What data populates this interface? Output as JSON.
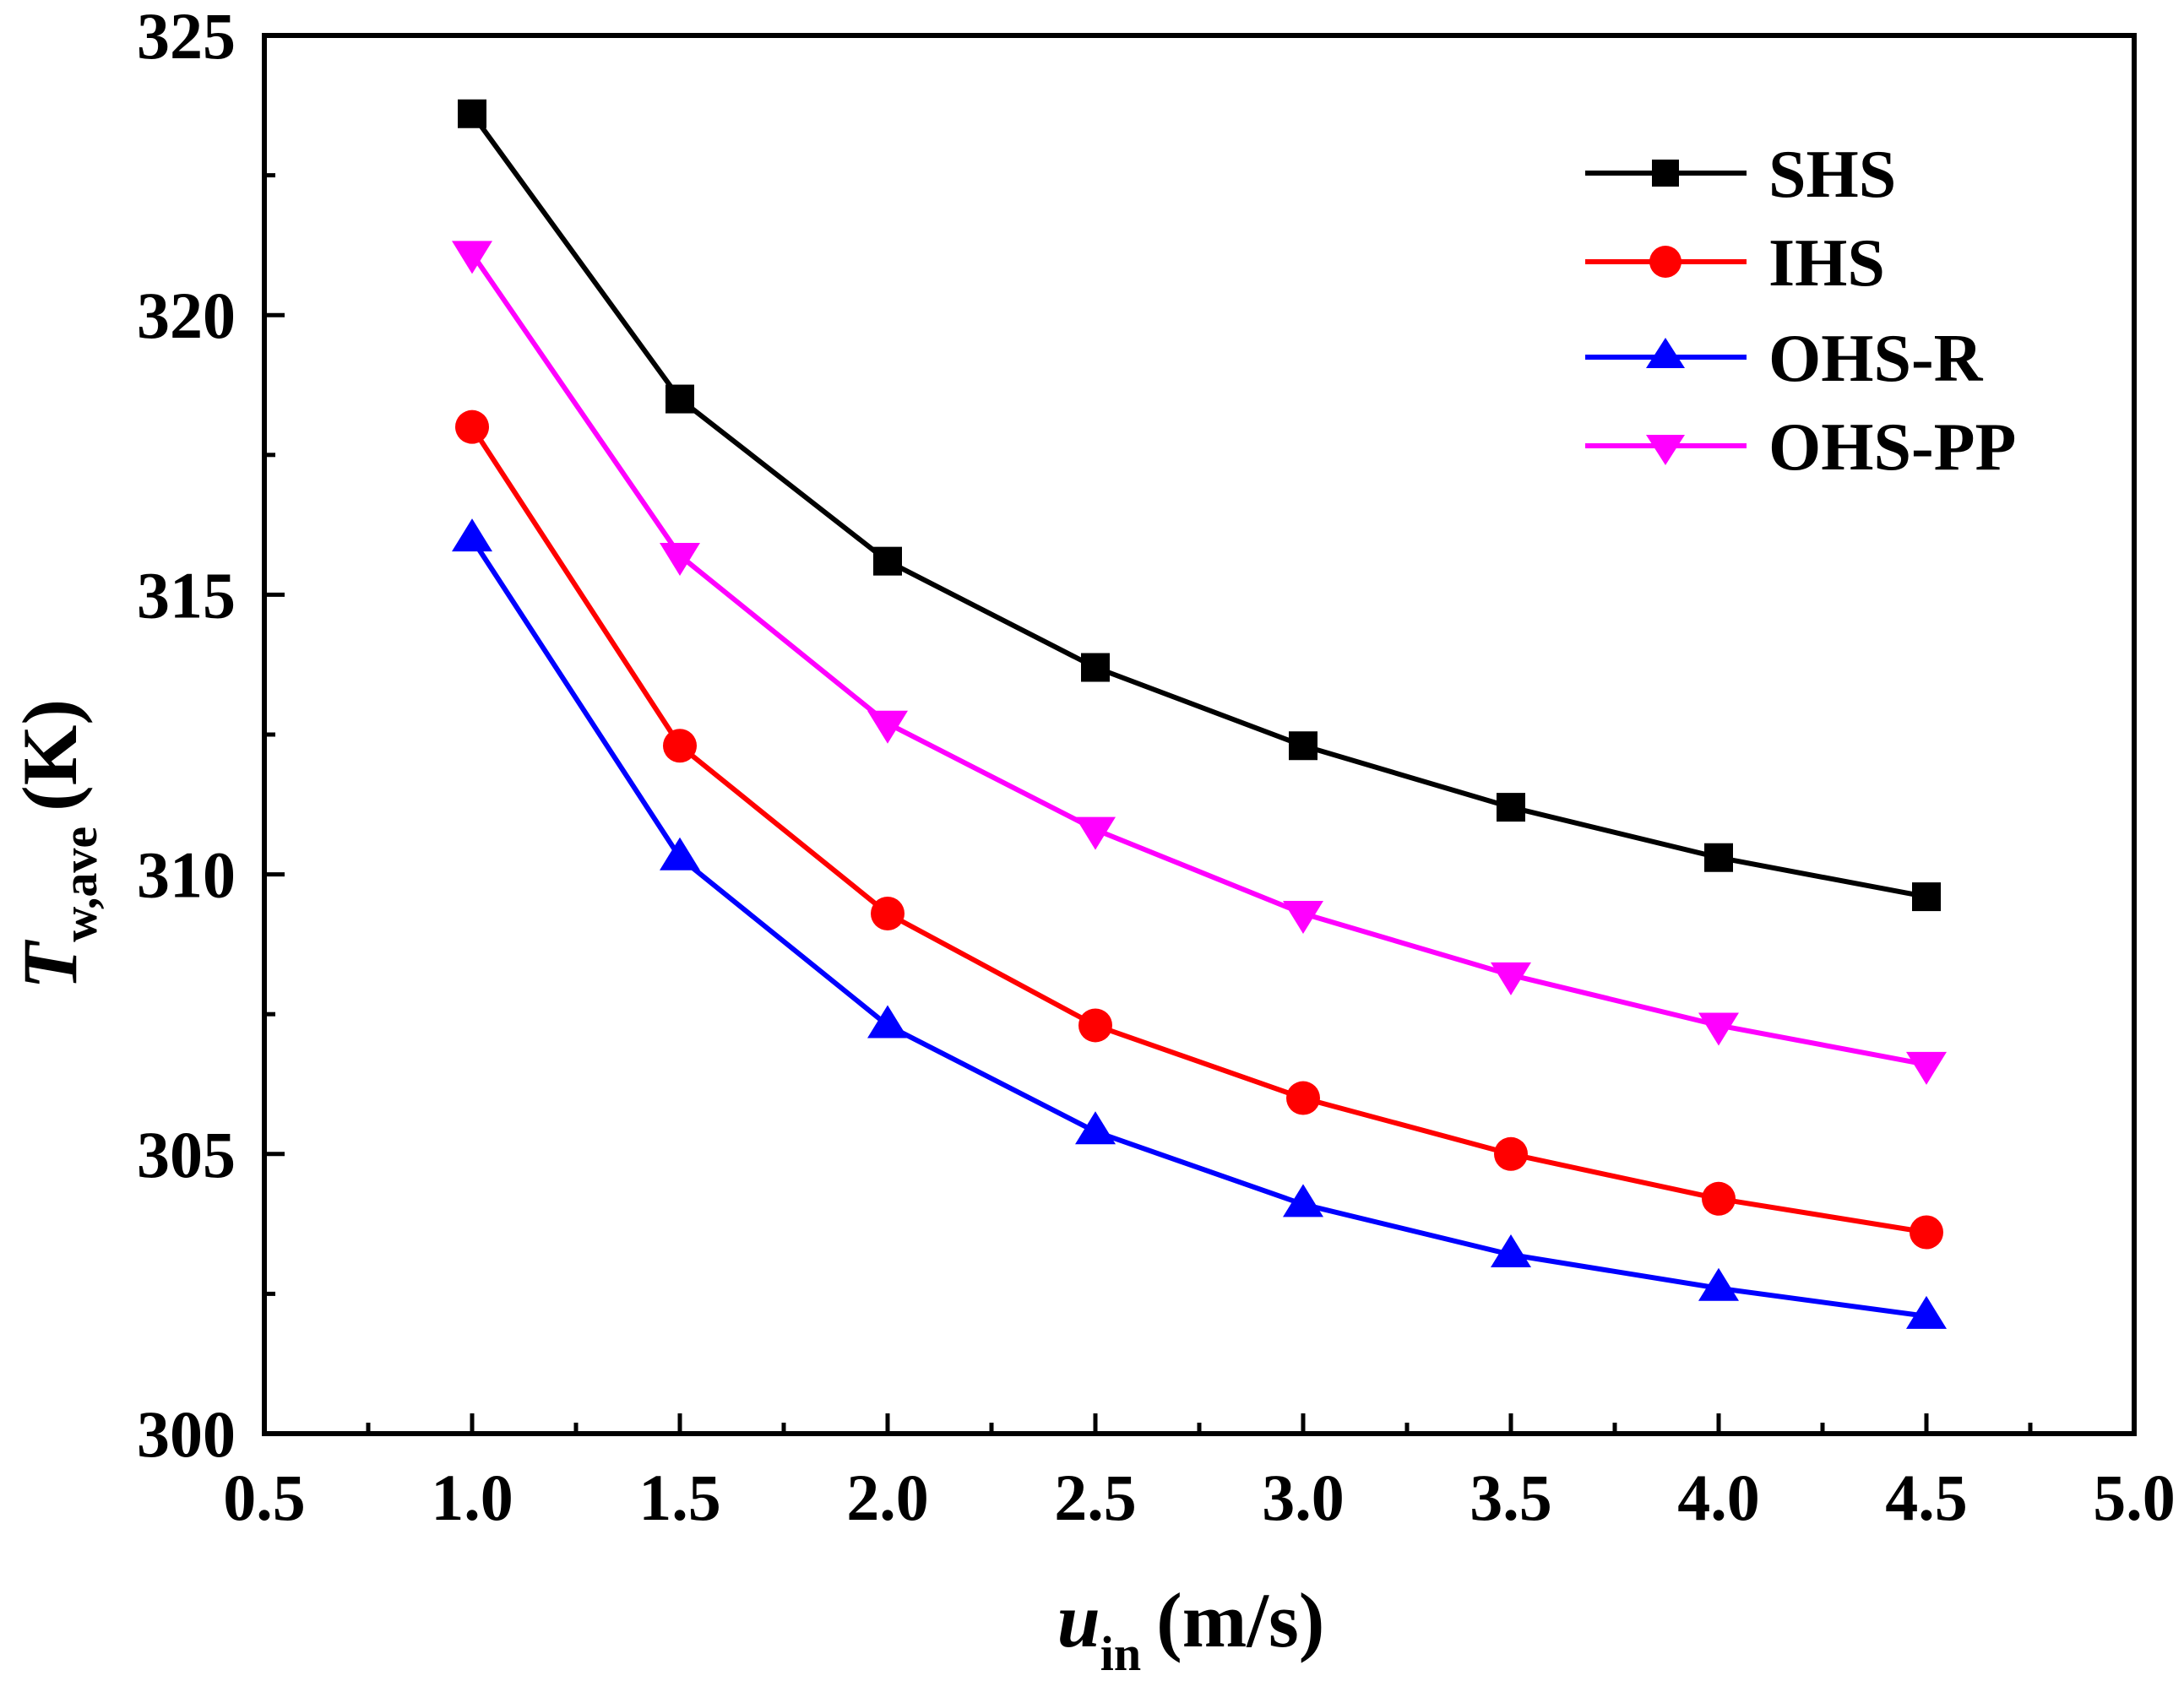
{
  "chart_data": {
    "type": "line",
    "title": "",
    "xlabel": {
      "main": "u",
      "sub": "in",
      "unit": "(m/s)"
    },
    "ylabel": {
      "main": "T",
      "sub": "w,ave",
      "unit": "(K)"
    },
    "xlim": [
      0.5,
      5.0
    ],
    "ylim": [
      300,
      325
    ],
    "xticks": [
      "0.5",
      "1.0",
      "1.5",
      "2.0",
      "2.5",
      "3.0",
      "3.5",
      "4.0",
      "4.5",
      "5.0"
    ],
    "yticks": [
      "300",
      "305",
      "310",
      "315",
      "320",
      "325"
    ],
    "grid": false,
    "legend_position": "top-right",
    "x": [
      1.0,
      1.5,
      2.0,
      2.5,
      3.0,
      3.5,
      4.0,
      4.5
    ],
    "series": [
      {
        "name": "SHS",
        "color": "#000000",
        "marker": "square",
        "values": [
          323.6,
          318.5,
          315.6,
          313.7,
          312.3,
          311.2,
          310.3,
          309.6
        ]
      },
      {
        "name": "IHS",
        "color": "#ff0000",
        "marker": "circle",
        "values": [
          318.0,
          312.3,
          309.3,
          307.3,
          306.0,
          305.0,
          304.2,
          303.6
        ]
      },
      {
        "name": "OHS-R",
        "color": "#0000ff",
        "marker": "triangle-up",
        "values": [
          316.0,
          310.3,
          307.3,
          305.4,
          304.1,
          303.2,
          302.6,
          302.1
        ]
      },
      {
        "name": "OHS-PP",
        "color": "#ff00ff",
        "marker": "triangle-down",
        "values": [
          321.1,
          315.7,
          312.7,
          310.8,
          309.3,
          308.2,
          307.3,
          306.6
        ]
      }
    ]
  }
}
